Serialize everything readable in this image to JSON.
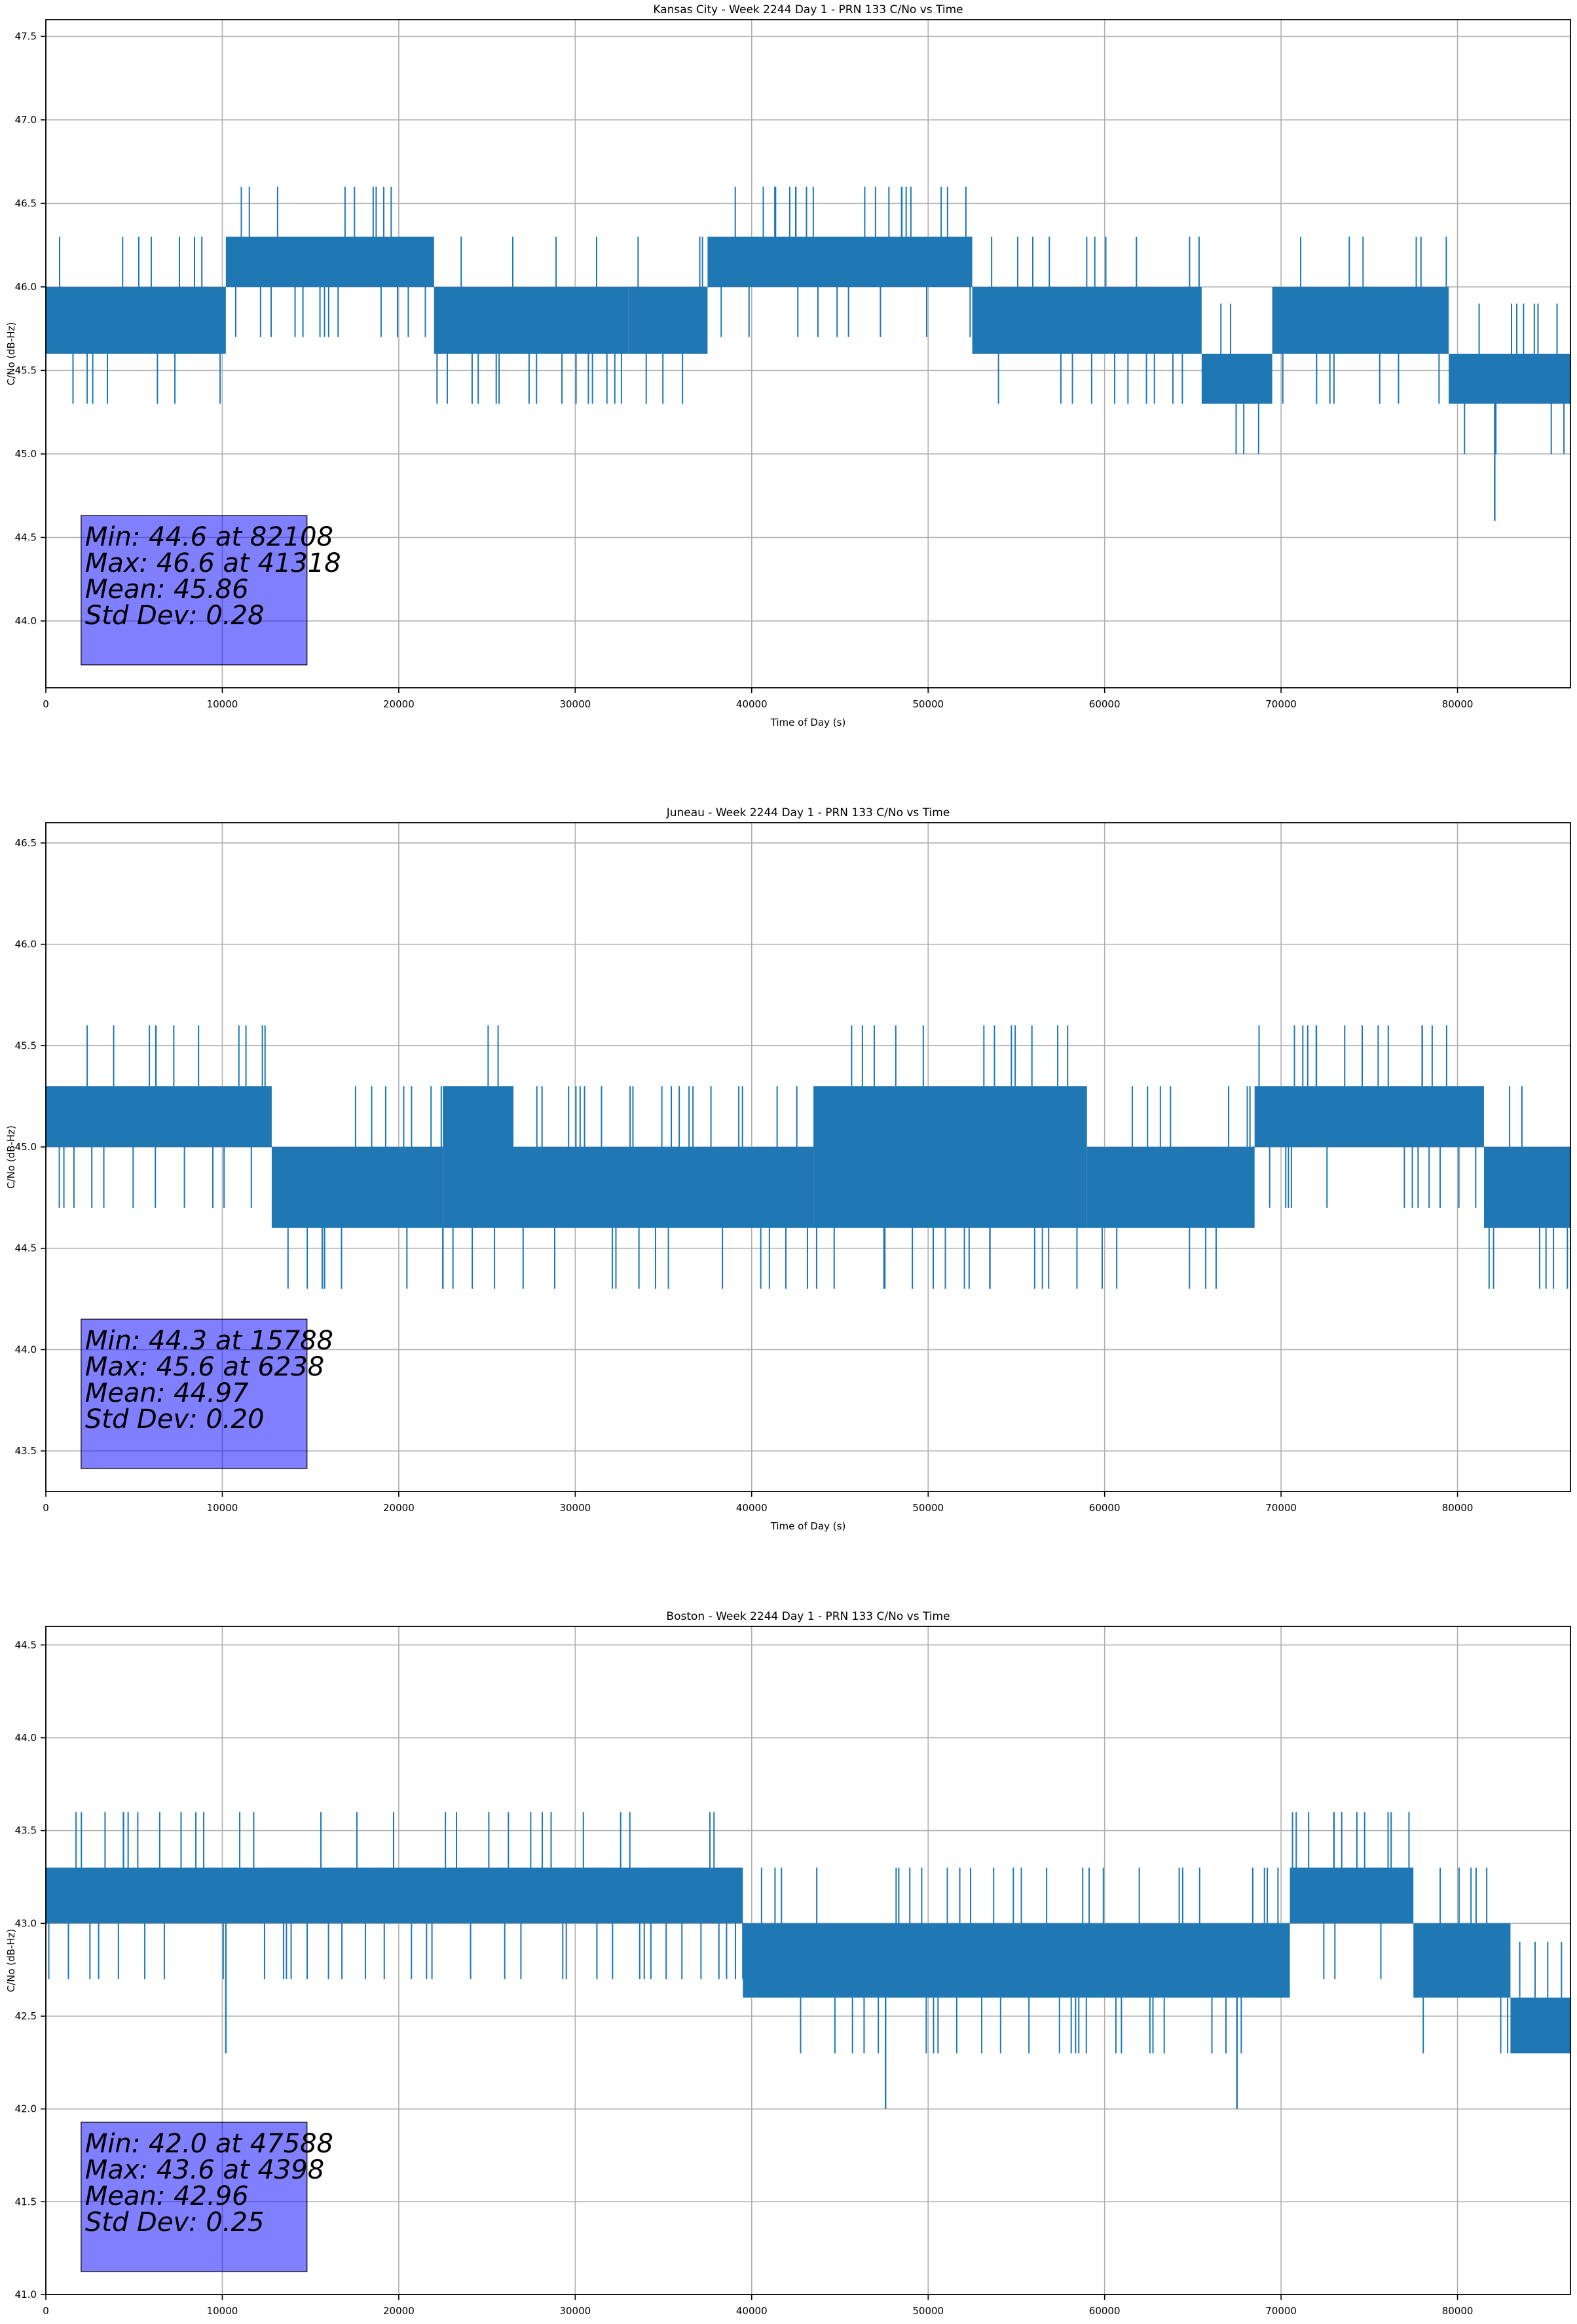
{
  "chart_data": [
    {
      "type": "line",
      "title": "Kansas City - Week 2244 Day 1 - PRN 133 C/No vs Time",
      "xlabel": "Time of Day (s)",
      "ylabel": "C/No (dB-Hz)",
      "xlim": [
        0,
        86400
      ],
      "ylim": [
        43.6,
        47.6
      ],
      "xticks": [
        0,
        10000,
        20000,
        30000,
        40000,
        50000,
        60000,
        70000,
        80000
      ],
      "yticks": [
        44.0,
        44.5,
        45.0,
        45.5,
        46.0,
        46.5,
        47.0,
        47.5
      ],
      "grid": true,
      "color": "#1f77b4",
      "series": [
        {
          "segments": [
            {
              "x": [
                0,
                10200
              ],
              "y": [
                45.6,
                46.0
              ]
            },
            {
              "x": [
                10200,
                22000
              ],
              "y": [
                46.0,
                46.3
              ]
            },
            {
              "x": [
                22000,
                33000
              ],
              "y": [
                45.6,
                46.0
              ]
            },
            {
              "x": [
                33000,
                37500
              ],
              "y": [
                45.6,
                46.0
              ]
            },
            {
              "x": [
                37500,
                52500
              ],
              "y": [
                46.0,
                46.3
              ]
            },
            {
              "x": [
                52500,
                65500
              ],
              "y": [
                45.6,
                46.0
              ]
            },
            {
              "x": [
                65500,
                69500
              ],
              "y": [
                45.3,
                45.6
              ]
            },
            {
              "x": [
                69500,
                79500
              ],
              "y": [
                45.6,
                46.0
              ]
            },
            {
              "x": [
                79500,
                86400
              ],
              "y": [
                45.3,
                45.6
              ]
            }
          ],
          "extreme_points": [
            {
              "x": 82108,
              "y": 44.6
            },
            {
              "x": 41318,
              "y": 46.6
            },
            {
              "x": 42500,
              "y": 46.6
            },
            {
              "x": 48500,
              "y": 46.6
            }
          ]
        }
      ],
      "stats": {
        "min": "Min: 44.6 at 82108",
        "max": "Max: 46.6 at 41318",
        "mean": "Mean: 45.86",
        "std": "Std Dev: 0.28"
      }
    },
    {
      "type": "line",
      "title": "Juneau - Week 2244 Day 1 - PRN 133 C/No vs Time",
      "xlabel": "Time of Day (s)",
      "ylabel": "C/No (dB-Hz)",
      "xlim": [
        0,
        86400
      ],
      "ylim": [
        43.3,
        46.6
      ],
      "xticks": [
        0,
        10000,
        20000,
        30000,
        40000,
        50000,
        60000,
        70000,
        80000
      ],
      "yticks": [
        43.5,
        44.0,
        44.5,
        45.0,
        45.5,
        46.0,
        46.5
      ],
      "grid": true,
      "color": "#1f77b4",
      "series": [
        {
          "segments": [
            {
              "x": [
                0,
                12800
              ],
              "y": [
                45.0,
                45.3
              ]
            },
            {
              "x": [
                12800,
                22500
              ],
              "y": [
                44.6,
                45.0
              ]
            },
            {
              "x": [
                22500,
                26500
              ],
              "y": [
                44.6,
                45.3
              ]
            },
            {
              "x": [
                26500,
                43500
              ],
              "y": [
                44.6,
                45.0
              ]
            },
            {
              "x": [
                43500,
                59000
              ],
              "y": [
                44.6,
                45.3
              ]
            },
            {
              "x": [
                59000,
                68500
              ],
              "y": [
                44.6,
                45.0
              ]
            },
            {
              "x": [
                68500,
                81500
              ],
              "y": [
                45.0,
                45.3
              ]
            },
            {
              "x": [
                81500,
                86400
              ],
              "y": [
                44.6,
                45.0
              ]
            }
          ],
          "extreme_points": [
            {
              "x": 15788,
              "y": 44.3
            },
            {
              "x": 6238,
              "y": 45.6
            },
            {
              "x": 22500,
              "y": 44.3
            },
            {
              "x": 47500,
              "y": 44.3
            },
            {
              "x": 53500,
              "y": 44.3
            },
            {
              "x": 72000,
              "y": 45.6
            },
            {
              "x": 78000,
              "y": 45.6
            }
          ]
        }
      ],
      "stats": {
        "min": "Min: 44.3 at 15788",
        "max": "Max: 45.6 at 6238",
        "mean": "Mean: 44.97",
        "std": "Std Dev: 0.20"
      }
    },
    {
      "type": "line",
      "title": "Boston - Week 2244 Day 1 - PRN 133 C/No vs Time",
      "xlabel": "Time of Day (s)",
      "ylabel": "C/No (dB-Hz)",
      "xlim": [
        0,
        86400
      ],
      "ylim": [
        41.0,
        44.6
      ],
      "xticks": [
        0,
        10000,
        20000,
        30000,
        40000,
        50000,
        60000,
        70000,
        80000
      ],
      "yticks": [
        41.0,
        41.5,
        42.0,
        42.5,
        43.0,
        43.5,
        44.0,
        44.5
      ],
      "grid": true,
      "color": "#1f77b4",
      "series": [
        {
          "segments": [
            {
              "x": [
                0,
                39500
              ],
              "y": [
                43.0,
                43.3
              ]
            },
            {
              "x": [
                39500,
                70500
              ],
              "y": [
                42.6,
                43.0
              ]
            },
            {
              "x": [
                70500,
                77500
              ],
              "y": [
                43.0,
                43.3
              ]
            },
            {
              "x": [
                77500,
                83000
              ],
              "y": [
                42.6,
                43.0
              ]
            },
            {
              "x": [
                83000,
                86400
              ],
              "y": [
                42.3,
                42.6
              ]
            }
          ],
          "extreme_points": [
            {
              "x": 47588,
              "y": 42.0
            },
            {
              "x": 4398,
              "y": 43.6
            },
            {
              "x": 10200,
              "y": 42.3
            },
            {
              "x": 67500,
              "y": 42.0
            },
            {
              "x": 73000,
              "y": 43.6
            }
          ]
        }
      ],
      "stats": {
        "min": "Min: 42.0 at 47588",
        "max": "Max: 43.6 at 4398",
        "mean": "Mean: 42.96",
        "std": "Std Dev: 0.25"
      }
    }
  ]
}
